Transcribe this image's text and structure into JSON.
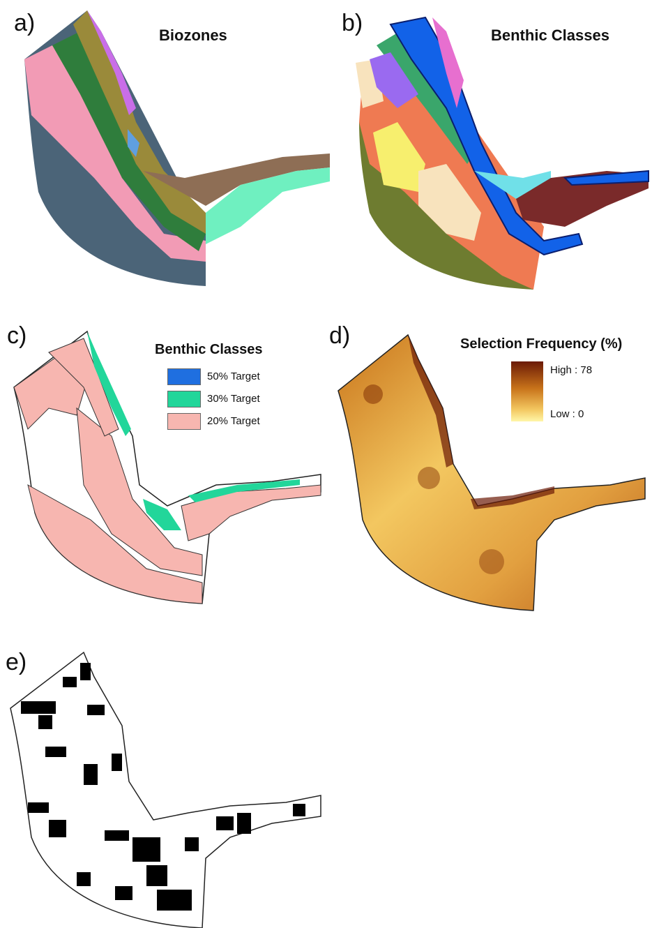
{
  "panels": {
    "a": {
      "label": "a)",
      "title": "Biozones"
    },
    "b": {
      "label": "b)",
      "title": "Benthic Classes"
    },
    "c": {
      "label": "c)",
      "title": "Benthic Classes",
      "legend": [
        {
          "text": "50% Target",
          "color": "#1f6fe0"
        },
        {
          "text": "30% Target",
          "color": "#22d69a"
        },
        {
          "text": "20% Target",
          "color": "#f7b6b0"
        }
      ]
    },
    "d": {
      "label": "d)",
      "title": "Selection Frequency (%)",
      "legend_high": "High : 78",
      "legend_low": "Low : 0",
      "ramp_colors": [
        "#6b1a06",
        "#c8731a",
        "#f3c760",
        "#fff6a8"
      ]
    },
    "e": {
      "label": "e)"
    }
  }
}
